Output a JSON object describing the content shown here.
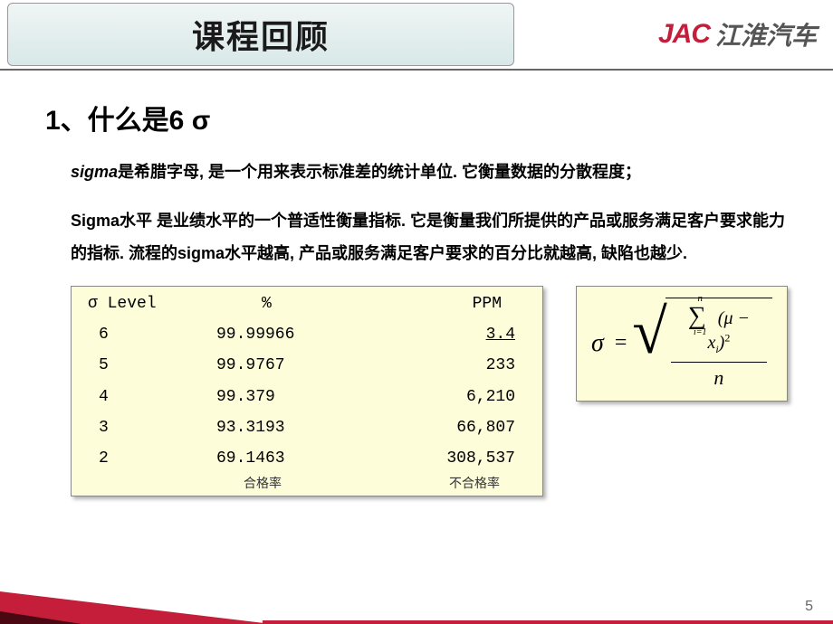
{
  "header": {
    "title": "课程回顾",
    "logo_en": "JAC",
    "logo_cn": "江淮汽车"
  },
  "section": {
    "heading": "1、什么是6 σ",
    "para1_prefix": "sigma",
    "para1_rest": "是希腊字母, 是一个用来表示标准差的统计单位. 它衡量数据的分散程度；",
    "para2": "Sigma水平 是业绩水平的一个普适性衡量指标. 它是衡量我们所提供的产品或服务满足客户要求能力的指标. 流程的sigma水平越高, 产品或服务满足客户要求的百分比就越高, 缺陷也越少."
  },
  "sigma_table": {
    "type": "table",
    "background_color": "#fdfdd9",
    "border_color": "#888888",
    "font_family": "SimSun",
    "font_size": 18,
    "columns": [
      "σ Level",
      "%",
      "PPM"
    ],
    "rows": [
      {
        "level": "6",
        "percent": "99.99966",
        "ppm": "3.4",
        "ppm_underline": true
      },
      {
        "level": "5",
        "percent": "99.9767",
        "ppm": "233"
      },
      {
        "level": "4",
        "percent": "99.379",
        "ppm": "6,210"
      },
      {
        "level": "3",
        "percent": "93.3193",
        "ppm": "66,807"
      },
      {
        "level": "2",
        "percent": "69.1463",
        "ppm": "308,537"
      }
    ],
    "footer_labels": {
      "percent": "合格率",
      "ppm": "不合格率"
    }
  },
  "formula": {
    "type": "formula",
    "background_color": "#fdfdd9",
    "lhs": "σ",
    "eq": "=",
    "sum_upper": "n",
    "sum_lower": "i=1",
    "body_mu": "μ",
    "body_minus": " − ",
    "body_x": "x",
    "body_sub": "i",
    "exponent": "2",
    "denominator": "n"
  },
  "page_number": "5",
  "colors": {
    "brand_red": "#c41e3a",
    "dark_red": "#4a0812",
    "title_bg_top": "#f0f5f5",
    "title_bg_bottom": "#d8e8e8",
    "text_color": "#000000"
  }
}
